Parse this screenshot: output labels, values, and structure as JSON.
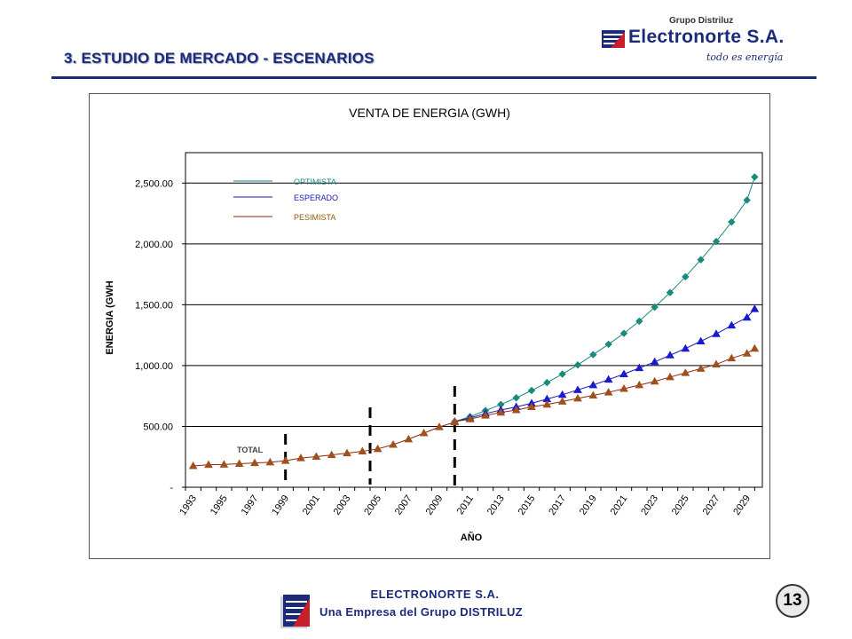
{
  "slide": {
    "title": "3.  ESTUDIO DE MERCADO - ESCENARIOS",
    "page_number": "13"
  },
  "logo": {
    "group": "Grupo Distriluz",
    "brand": "Electronorte S.A.",
    "tagline": "todo es energía"
  },
  "footer": {
    "company": "ELECTRONORTE  S.A.",
    "subtitle": "Una Empresa del Grupo DISTRILUZ"
  },
  "colors": {
    "brand": "#1c2a7a",
    "optimista": "#1a8a8a",
    "esperado": "#1a1ab0",
    "pesimista": "#8b2a10"
  },
  "chart_data": {
    "type": "line",
    "title": "VENTA DE ENERGIA (GWH)",
    "xlabel": "AÑO",
    "ylabel": "ENERGIA (GWH",
    "ylim": [
      0,
      2750
    ],
    "yticks": [
      0,
      500,
      1000,
      1500,
      2000,
      2500
    ],
    "ytick_labels": [
      "-",
      "500.00",
      "1,000.00",
      "1,500.00",
      "2,000.00",
      "2,500.00"
    ],
    "xtick_labels": [
      "1993",
      "1995",
      "1997",
      "1999",
      "2001",
      "2003",
      "2005",
      "2007",
      "2009",
      "2011",
      "2013",
      "2015",
      "2017",
      "2019",
      "2021",
      "2023",
      "2025",
      "2027",
      "2029"
    ],
    "grid": "horizontal",
    "legend_position": "top-left",
    "annotation": "TOTAL",
    "scenario_markers_years": [
      1999.0,
      2004.5,
      2010.0
    ],
    "history": {
      "years": [
        1993,
        1994,
        1995,
        1996,
        1997,
        1998,
        1999,
        2000,
        2001,
        2002,
        2003,
        2004,
        2005,
        2006,
        2007,
        2008,
        2009,
        2010
      ],
      "values": [
        175,
        185,
        187,
        193,
        200,
        205,
        218,
        240,
        252,
        265,
        280,
        295,
        315,
        350,
        395,
        445,
        495,
        535
      ]
    },
    "series": [
      {
        "name": "OPTIMISTA",
        "marker": "diamond",
        "years": [
          2010,
          2011,
          2012,
          2013,
          2014,
          2015,
          2016,
          2017,
          2018,
          2019,
          2020,
          2021,
          2022,
          2023,
          2024,
          2025,
          2026,
          2027,
          2028,
          2029
        ],
        "values": [
          540,
          580,
          630,
          680,
          735,
          795,
          860,
          930,
          1005,
          1090,
          1175,
          1265,
          1365,
          1480,
          1600,
          1730,
          1870,
          2020,
          2180,
          2360
        ]
      },
      {
        "name": "ESPERADO",
        "marker": "triangle",
        "years": [
          2010,
          2011,
          2012,
          2013,
          2014,
          2015,
          2016,
          2017,
          2018,
          2019,
          2020,
          2021,
          2022,
          2023,
          2024,
          2025,
          2026,
          2027,
          2028,
          2029
        ],
        "values": [
          540,
          570,
          605,
          635,
          660,
          690,
          725,
          760,
          800,
          840,
          885,
          930,
          980,
          1030,
          1085,
          1140,
          1200,
          1260,
          1330,
          1395
        ]
      },
      {
        "name": "PESIMISTA",
        "marker": "triangle",
        "years": [
          2010,
          2011,
          2012,
          2013,
          2014,
          2015,
          2016,
          2017,
          2018,
          2019,
          2020,
          2021,
          2022,
          2023,
          2024,
          2025,
          2026,
          2027,
          2028,
          2029
        ],
        "values": [
          540,
          560,
          590,
          615,
          635,
          660,
          680,
          705,
          730,
          755,
          780,
          810,
          840,
          870,
          905,
          940,
          975,
          1010,
          1060,
          1100
        ]
      }
    ],
    "final_points": {
      "OPTIMISTA": 2550,
      "ESPERADO": 1465,
      "PESIMISTA": 1140
    }
  }
}
